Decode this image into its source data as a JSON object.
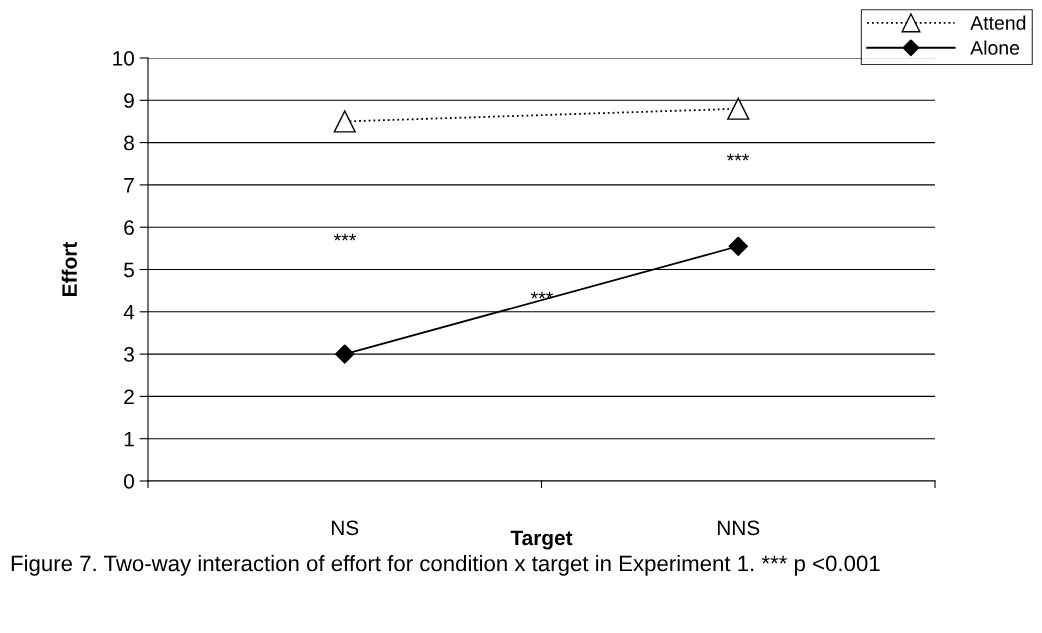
{
  "chart_data": {
    "type": "line",
    "xlabel": "Target",
    "ylabel": "Effort",
    "categories": [
      "NS",
      "NNS"
    ],
    "series": [
      {
        "name": "Attend",
        "color": "#000000",
        "values": [
          8.5,
          8.8
        ],
        "marker": "triangle",
        "line_style": "dotted"
      },
      {
        "name": "Alone",
        "color": "#000000",
        "values": [
          3.0,
          5.55
        ],
        "marker": "diamond",
        "line_style": "solid"
      }
    ],
    "ylim": [
      0,
      10
    ],
    "yticks": [
      0,
      1,
      2,
      3,
      4,
      5,
      6,
      7,
      8,
      9,
      10
    ],
    "grid": "y",
    "legend": "top right",
    "annotations": [
      "***",
      "***",
      "***",
      "Figure 7. Two-way interaction of effort for condition x target in Experiment 1. *** p <0.001"
    ]
  }
}
